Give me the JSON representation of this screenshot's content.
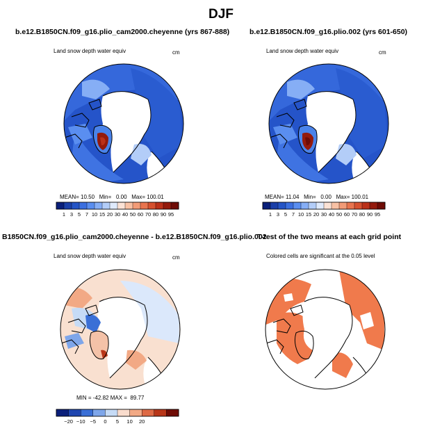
{
  "figure": {
    "title": "DJF"
  },
  "panels": [
    {
      "title": "b.e12.B1850CN.f09_g16.plio_cam2000.cheyenne (yrs 867-888)",
      "variable": "Land snow depth water equiv",
      "units": "cm",
      "stats": {
        "mean_label": "MEAN=",
        "mean": "10.50",
        "min_label": "Min=",
        "min": "0.00",
        "max_label": "Max=",
        "max": "100.01"
      },
      "colorbar": {
        "labels": [
          "1",
          "3",
          "5",
          "7",
          "10",
          "15",
          "20",
          "30",
          "40",
          "50",
          "60",
          "70",
          "80",
          "90",
          "95"
        ],
        "colors": [
          "#0a1f7a",
          "#1a3fa8",
          "#2454c6",
          "#3b6fe0",
          "#5a8ef0",
          "#86aef5",
          "#b3cdf8",
          "#dfeafc",
          "#fbe2d5",
          "#f8c1a4",
          "#f29b77",
          "#e8744e",
          "#d6512f",
          "#bb3119",
          "#941a0c",
          "#6e0b05"
        ]
      }
    },
    {
      "title": "b.e12.B1850CN.f09_g16.plio.002 (yrs 601-650)",
      "variable": "Land snow depth water equiv",
      "units": "cm",
      "stats": {
        "mean_label": "MEAN=",
        "mean": "11.04",
        "min_label": "Min=",
        "min": "0.00",
        "max_label": "Max=",
        "max": "100.01"
      },
      "colorbar": {
        "labels": [
          "1",
          "3",
          "5",
          "7",
          "10",
          "15",
          "20",
          "30",
          "40",
          "50",
          "60",
          "70",
          "80",
          "90",
          "95"
        ],
        "colors": [
          "#0a1f7a",
          "#1a3fa8",
          "#2454c6",
          "#3b6fe0",
          "#5a8ef0",
          "#86aef5",
          "#b3cdf8",
          "#dfeafc",
          "#fbe2d5",
          "#f8c1a4",
          "#f29b77",
          "#e8744e",
          "#d6512f",
          "#bb3119",
          "#941a0c",
          "#6e0b05"
        ]
      }
    },
    {
      "title": "B1850CN.f09_g16.plio_cam2000.cheyenne - b.e12.B1850CN.f09_g16.plio.002",
      "variable": "Land snow depth water equiv",
      "units": "cm",
      "stats": {
        "min_label": "MIN =",
        "min": "-42.82",
        "max_label": "MAX =",
        "max": "89.77"
      },
      "colorbar": {
        "labels": [
          "−20",
          "−10",
          "−5",
          "0",
          "5",
          "10",
          "20"
        ],
        "colors": [
          "#0a1f7a",
          "#1f46b0",
          "#3a6fd6",
          "#7ea6ea",
          "#c6dbf6",
          "#f9dccd",
          "#f2a985",
          "#de6a45",
          "#b83618",
          "#6e0b05"
        ]
      }
    },
    {
      "title": "T-test of the two means at each grid point",
      "note": "Colored cells are significant at the 0.05 level"
    }
  ]
}
